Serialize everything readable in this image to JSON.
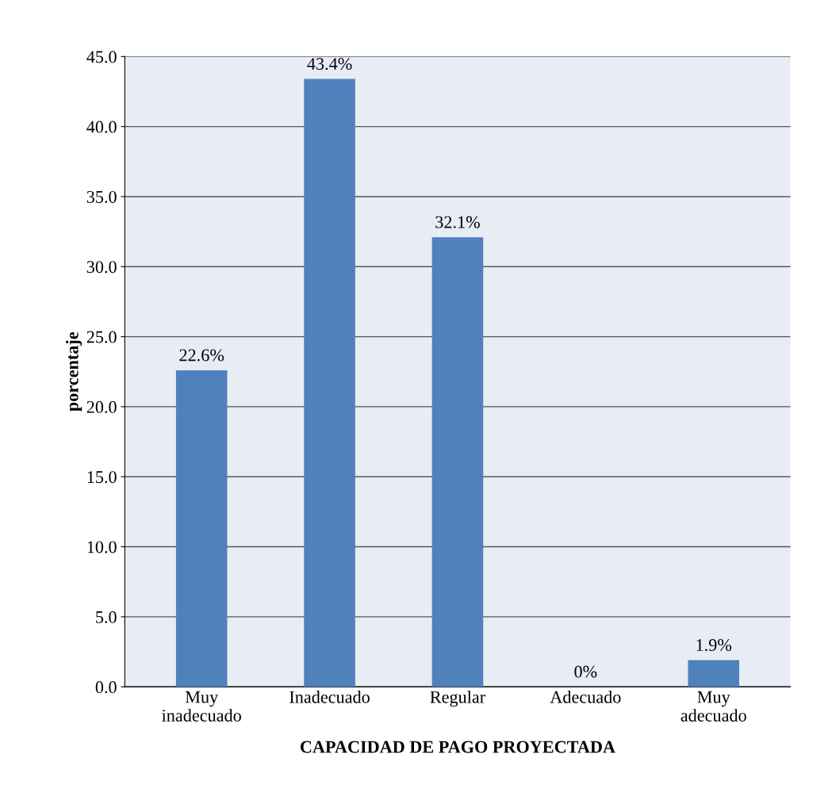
{
  "chart_data": {
    "type": "bar",
    "xlabel": "CAPACIDAD DE PAGO PROYECTADA",
    "ylabel": "porcentaje",
    "categories": [
      "Muy\ninadecuado",
      "Inadecuado",
      "Regular",
      "Adecuado",
      "Muy\nadecuado"
    ],
    "values": [
      22.6,
      43.4,
      32.1,
      0,
      1.9
    ],
    "value_labels": [
      "22.6%",
      "43.4%",
      "32.1%",
      "0%",
      "1.9%"
    ],
    "color": "#4f81bd",
    "ylim": [
      0,
      45
    ],
    "yticks": [
      {
        "value": 0,
        "label": "0.0"
      },
      {
        "value": 5,
        "label": "5.0"
      },
      {
        "value": 10,
        "label": "10.0"
      },
      {
        "value": 15,
        "label": "15.0"
      },
      {
        "value": 20,
        "label": "20.0"
      },
      {
        "value": 25,
        "label": "25.0"
      },
      {
        "value": 30,
        "label": "30.0"
      },
      {
        "value": 35,
        "label": "35.0"
      },
      {
        "value": 40,
        "label": "40.0"
      },
      {
        "value": 45,
        "label": "45.0"
      }
    ],
    "grid": "y"
  }
}
